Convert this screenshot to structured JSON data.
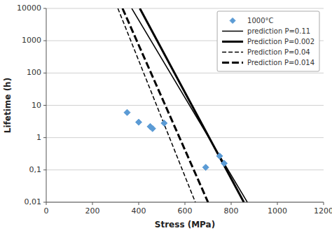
{
  "chart_data": {
    "type": "line",
    "xlabel": "Stress (MPa)",
    "ylabel": "Lifetime (h)",
    "log": "y",
    "xlim": [
      0,
      1200
    ],
    "ylim": [
      0.01,
      10000
    ],
    "xticks": [
      0,
      200,
      400,
      600,
      800,
      1000,
      1200
    ],
    "yticks": [
      {
        "value": 0.01,
        "label": "0,01"
      },
      {
        "value": 0.1,
        "label": "0,1"
      },
      1,
      10,
      100,
      1000,
      10000
    ],
    "grid": true,
    "legend": "upper right",
    "series": [
      {
        "name": "1000°C",
        "type": "scatter",
        "color": "#5B9BD5",
        "marker": "diamond",
        "x": [
          350,
          400,
          450,
          460,
          510,
          690,
          750,
          770
        ],
        "values": [
          6.0,
          3.0,
          2.2,
          1.9,
          2.8,
          0.12,
          0.27,
          0.16
        ]
      },
      {
        "name": "prediction P=0.11",
        "type": "line",
        "color": "#000000",
        "line_style": "solid",
        "x": [
          370,
          870
        ],
        "values": [
          10000,
          0.01
        ]
      },
      {
        "name": "Prediction P=0.002",
        "type": "line",
        "color": "#000000",
        "line_style": "thick",
        "x": [
          405,
          855
        ],
        "values": [
          10000,
          0.01
        ]
      },
      {
        "name": "Prediction P=0.04",
        "type": "line",
        "color": "#000000",
        "line_style": "dashed",
        "x": [
          310,
          645
        ],
        "values": [
          10000,
          0.01
        ]
      },
      {
        "name": "Prediction P=0.014",
        "type": "line",
        "color": "#000000",
        "line_style": "thick-dashed",
        "x": [
          330,
          700
        ],
        "values": [
          10000,
          0.01
        ]
      }
    ]
  }
}
